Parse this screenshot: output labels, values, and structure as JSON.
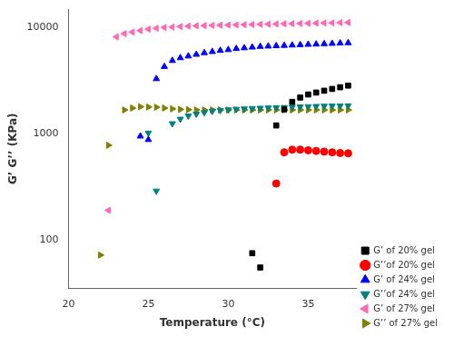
{
  "chart_data": {
    "type": "scatter",
    "title": "",
    "xlabel": "Temperature (°C)",
    "ylabel": "G’ G’’ (KPa)",
    "log": "y",
    "xlim": [
      20,
      38
    ],
    "xticks": [
      20,
      25,
      30,
      35
    ],
    "ylim": [
      35,
      15000
    ],
    "yticks": [
      100,
      1000,
      10000
    ],
    "grid": false,
    "legend": "lower right",
    "series": [
      {
        "name": "G’ of 20% gel",
        "color": "#000000",
        "marker": "square",
        "x": [
          31.5,
          32.0,
          33.0,
          33.5,
          34.0,
          34.5,
          35.0,
          35.5,
          36.0,
          36.5,
          37.0,
          37.5
        ],
        "values": [
          75,
          55,
          1200,
          1700,
          2000,
          2200,
          2350,
          2450,
          2550,
          2650,
          2750,
          2850
        ]
      },
      {
        "name": "G’’of 20% gel",
        "color": "#ff0000",
        "marker": "circle",
        "x": [
          33.0,
          33.5,
          34.0,
          34.5,
          35.0,
          35.5,
          36.0,
          36.5,
          37.0,
          37.5
        ],
        "values": [
          340,
          670,
          710,
          710,
          700,
          690,
          680,
          670,
          660,
          655
        ]
      },
      {
        "name": "G’ of 24% gel",
        "color": "#0000ff",
        "marker": "triangle-up",
        "x": [
          24.5,
          25.0,
          25.5,
          26.0,
          26.5,
          27.0,
          27.5,
          28.0,
          28.5,
          29.0,
          29.5,
          30.0,
          30.5,
          31.0,
          31.5,
          32.0,
          32.5,
          33.0,
          33.5,
          34.0,
          34.5,
          35.0,
          35.5,
          36.0,
          36.5,
          37.0,
          37.5
        ],
        "values": [
          950,
          880,
          3300,
          4300,
          4900,
          5200,
          5400,
          5600,
          5800,
          5950,
          6100,
          6200,
          6350,
          6450,
          6550,
          6650,
          6700,
          6750,
          6800,
          6850,
          6900,
          6950,
          7000,
          7050,
          7100,
          7150,
          7200
        ]
      },
      {
        "name": "G’’of 24% gel",
        "color": "#008080",
        "marker": "triangle-down",
        "x": [
          25.0,
          25.5,
          26.5,
          27.0,
          27.5,
          28.0,
          28.5,
          29.0,
          29.5,
          30.0,
          30.5,
          31.0,
          31.5,
          32.0,
          32.5,
          33.0,
          33.5,
          34.0,
          34.5,
          35.0,
          35.5,
          36.0,
          36.5,
          37.0,
          37.5
        ],
        "values": [
          1020,
          290,
          1250,
          1380,
          1480,
          1540,
          1590,
          1640,
          1670,
          1690,
          1710,
          1725,
          1740,
          1750,
          1760,
          1770,
          1780,
          1790,
          1800,
          1810,
          1820,
          1830,
          1835,
          1840,
          1845
        ]
      },
      {
        "name": "G’ of 27% gel",
        "color": "#ff69b4",
        "marker": "triangle-left",
        "x": [
          22.5,
          23.0,
          23.5,
          24.0,
          24.5,
          25.0,
          25.5,
          26.0,
          26.5,
          27.0,
          27.5,
          28.0,
          28.5,
          29.0,
          29.5,
          30.0,
          30.5,
          31.0,
          31.5,
          32.0,
          32.5,
          33.0,
          33.5,
          34.0,
          34.5,
          35.0,
          35.5,
          36.0,
          36.5,
          37.0,
          37.5
        ],
        "values": [
          190,
          8200,
          8800,
          9100,
          9400,
          9700,
          9900,
          10050,
          10150,
          10250,
          10350,
          10430,
          10480,
          10530,
          10570,
          10610,
          10650,
          10690,
          10730,
          10770,
          10810,
          10850,
          10890,
          10930,
          10970,
          11010,
          11050,
          11090,
          11130,
          11170,
          11210
        ]
      },
      {
        "name": "G’’ of 27% gel",
        "color": "#808000",
        "marker": "triangle-right",
        "x": [
          22.0,
          22.5,
          23.5,
          24.0,
          24.5,
          25.0,
          25.5,
          26.0,
          26.5,
          27.0,
          27.5,
          28.0,
          28.5,
          29.0,
          29.5,
          30.0,
          30.5,
          31.0,
          31.5,
          32.0,
          32.5,
          33.0,
          33.5,
          34.0,
          34.5,
          35.0,
          35.5,
          36.0,
          36.5,
          37.0,
          37.5
        ],
        "values": [
          72,
          780,
          1680,
          1750,
          1800,
          1790,
          1780,
          1750,
          1720,
          1700,
          1690,
          1680,
          1680,
          1680,
          1680,
          1680,
          1680,
          1680,
          1680,
          1680,
          1680,
          1680,
          1680,
          1680,
          1680,
          1680,
          1680,
          1680,
          1680,
          1680,
          1680
        ]
      }
    ]
  }
}
